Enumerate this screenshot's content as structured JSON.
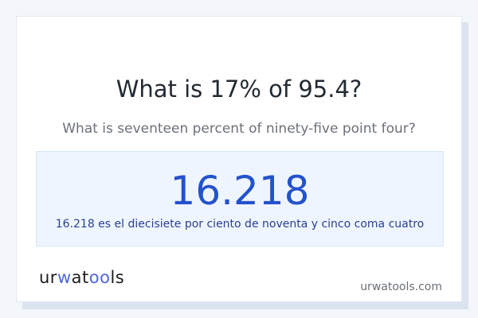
{
  "question": {
    "title": "What is 17% of 95.4?",
    "subtitle": "What is seventeen percent of ninety-five point four?"
  },
  "result": {
    "value": "16.218",
    "description": "16.218 es el diecisiete por ciento de noventa y cinco coma cuatro"
  },
  "footer": {
    "logo_text": "urwatools",
    "logo_parts": [
      "ur",
      "w",
      "at",
      "oo",
      "ls"
    ],
    "site": "urwatools.com"
  },
  "colors": {
    "accent": "#2452cc",
    "logo_accent": "#4f66e0",
    "result_bg": "#eef5ff"
  }
}
